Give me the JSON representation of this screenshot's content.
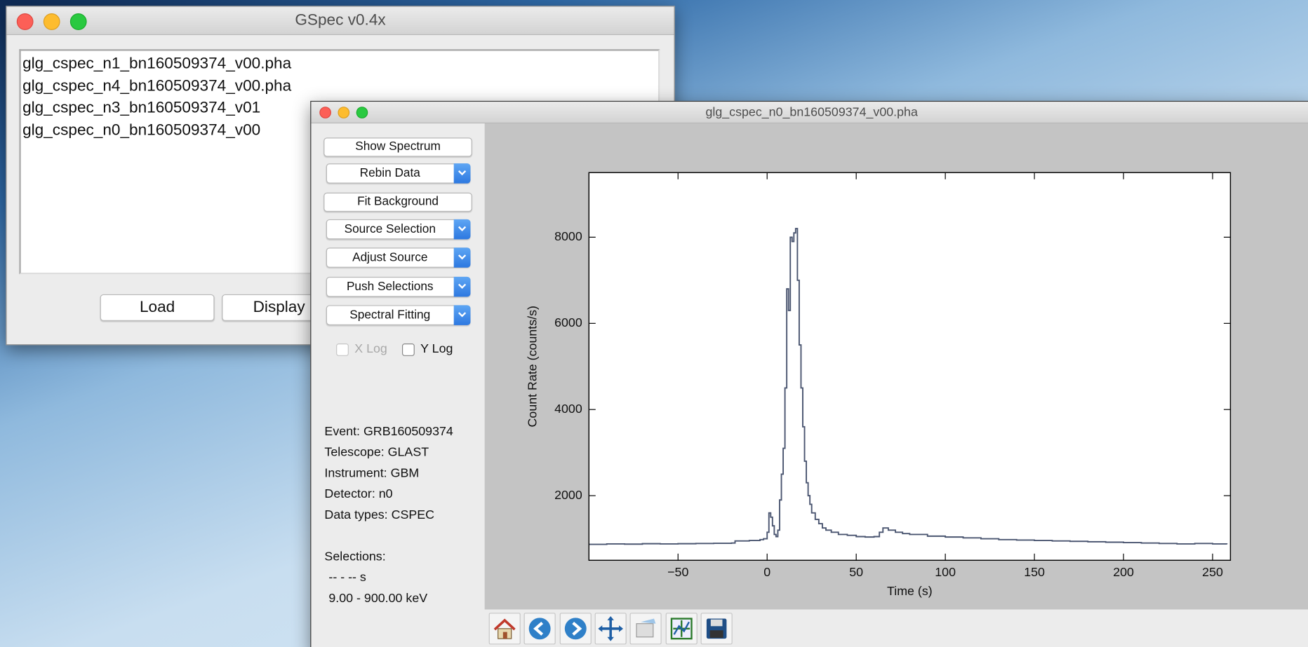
{
  "main_window": {
    "title": "GSpec v0.4x",
    "files": [
      "glg_cspec_n1_bn160509374_v00.pha",
      "glg_cspec_n4_bn160509374_v00.pha",
      "glg_cspec_n3_bn160509374_v01",
      "glg_cspec_n0_bn160509374_v00"
    ],
    "buttons": [
      "Load",
      "Display"
    ]
  },
  "spectrum_window": {
    "title": "glg_cspec_n0_bn160509374_v00.pha",
    "buttons": [
      {
        "label": "Show Spectrum",
        "menu": false
      },
      {
        "label": "Rebin Data",
        "menu": true
      },
      {
        "label": "Fit Background",
        "menu": false
      },
      {
        "label": "Source Selection",
        "menu": true
      },
      {
        "label": "Adjust Source",
        "menu": true
      },
      {
        "label": "Push Selections",
        "menu": true
      },
      {
        "label": "Spectral Fitting",
        "menu": true
      }
    ],
    "checkboxes": [
      {
        "label": "X Log",
        "enabled": false
      },
      {
        "label": "Y Log",
        "enabled": true
      }
    ],
    "info": [
      "Event: GRB160509374",
      "Telescope: GLAST",
      "Instrument: GBM",
      "Detector: n0",
      "Data types: CSPEC"
    ],
    "selections_title": "Selections:",
    "selections": [
      "-- - -- s",
      "9.00 - 900.00 keV"
    ]
  },
  "chart_data": {
    "type": "line",
    "drawstyle": "steps-post",
    "color": "#4a5570",
    "xlabel": "Time (s)",
    "ylabel": "Count Rate (counts/s)",
    "x": [
      -100,
      -90,
      -80,
      -70,
      -60,
      -50,
      -40,
      -30,
      -20,
      -18,
      -10,
      -4,
      -2,
      0,
      1,
      2,
      3,
      4,
      5,
      6,
      7,
      8,
      9,
      10,
      11,
      12,
      13,
      14,
      15,
      16,
      17,
      18,
      19,
      20,
      21,
      22,
      23,
      24,
      25,
      27,
      29,
      31,
      33,
      36,
      40,
      45,
      50,
      55,
      60,
      63,
      65,
      68,
      72,
      76,
      80,
      90,
      100,
      110,
      120,
      130,
      140,
      150,
      160,
      170,
      180,
      190,
      200,
      210,
      220,
      230,
      240,
      250,
      258
    ],
    "values": [
      870,
      880,
      875,
      885,
      880,
      885,
      890,
      895,
      900,
      950,
      960,
      980,
      1000,
      1150,
      1600,
      1500,
      1300,
      1100,
      1050,
      1200,
      1900,
      2500,
      3100,
      4500,
      6800,
      6300,
      8000,
      7900,
      8100,
      8200,
      7000,
      5500,
      4500,
      3600,
      2800,
      2300,
      2000,
      1800,
      1600,
      1450,
      1350,
      1250,
      1200,
      1150,
      1100,
      1080,
      1050,
      1040,
      1050,
      1150,
      1250,
      1200,
      1150,
      1120,
      1100,
      1060,
      1040,
      1020,
      1000,
      980,
      970,
      960,
      950,
      940,
      930,
      920,
      910,
      900,
      890,
      880,
      890,
      880,
      870
    ],
    "xlim": [
      -100,
      260
    ],
    "ylim": [
      500,
      9500
    ],
    "xticks": [
      {
        "value": -50,
        "label": "−50"
      },
      0,
      50,
      100,
      150,
      200,
      250
    ],
    "yticks": [
      2000,
      4000,
      6000,
      8000
    ]
  }
}
